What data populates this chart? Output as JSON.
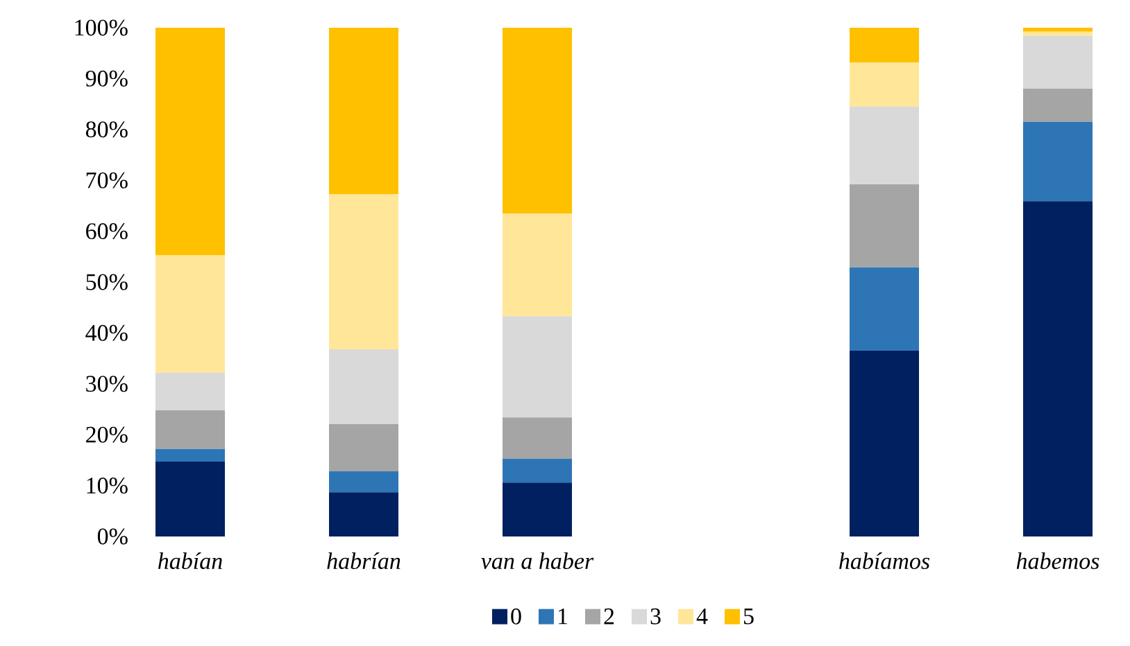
{
  "chart_data": {
    "type": "bar",
    "stacked": true,
    "categories": [
      "habían",
      "habrían",
      "van a haber",
      null,
      "habíamos",
      "habemos"
    ],
    "series": [
      {
        "name": "0",
        "color": "#002060",
        "values": [
          14.7,
          8.7,
          10.6,
          null,
          36.5,
          65.9
        ]
      },
      {
        "name": "1",
        "color": "#2e75b6",
        "values": [
          2.5,
          4.1,
          4.7,
          null,
          16.4,
          15.6
        ]
      },
      {
        "name": "2",
        "color": "#a5a5a5",
        "values": [
          7.6,
          9.3,
          8.1,
          null,
          16.3,
          6.5
        ]
      },
      {
        "name": "3",
        "color": "#d9d9d9",
        "values": [
          7.4,
          14.7,
          19.9,
          null,
          15.3,
          10.4
        ]
      },
      {
        "name": "4",
        "color": "#ffe699",
        "values": [
          23.1,
          30.5,
          20.2,
          null,
          8.7,
          0.8
        ]
      },
      {
        "name": "5",
        "color": "#ffc000",
        "values": [
          44.7,
          32.7,
          36.5,
          null,
          6.8,
          0.8
        ]
      }
    ],
    "ylim": [
      0,
      100
    ],
    "yticks": [
      {
        "value": 0,
        "label": "0%"
      },
      {
        "value": 10,
        "label": "10%"
      },
      {
        "value": 20,
        "label": "20%"
      },
      {
        "value": 30,
        "label": "30%"
      },
      {
        "value": 40,
        "label": "40%"
      },
      {
        "value": 50,
        "label": "50%"
      },
      {
        "value": 60,
        "label": "60%"
      },
      {
        "value": 70,
        "label": "70%"
      },
      {
        "value": 80,
        "label": "80%"
      },
      {
        "value": 90,
        "label": "90%"
      },
      {
        "value": 100,
        "label": "100%"
      }
    ],
    "grid": false,
    "legend": "bottom"
  }
}
